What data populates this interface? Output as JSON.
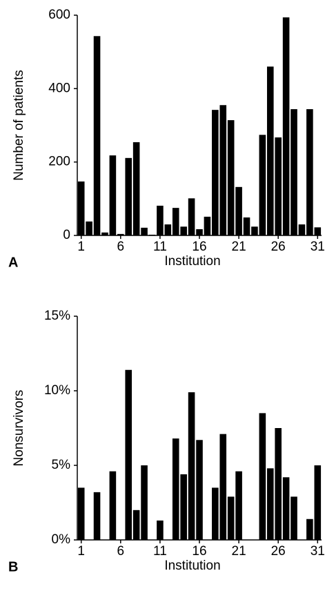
{
  "chart_data": [
    {
      "type": "bar",
      "panel_label": "A",
      "x_label": "Institution",
      "y_label": "Number of patients",
      "categories": [
        "1",
        null,
        null,
        null,
        null,
        "6",
        null,
        null,
        null,
        null,
        "11",
        null,
        null,
        null,
        null,
        "16",
        null,
        null,
        null,
        null,
        "21",
        null,
        null,
        null,
        null,
        "26",
        null,
        null,
        null,
        null,
        "31"
      ],
      "values": [
        147,
        38,
        543,
        8,
        218,
        4,
        211,
        254,
        21,
        2,
        81,
        30,
        75,
        24,
        101,
        17,
        51,
        342,
        355,
        314,
        132,
        49,
        24,
        274,
        460,
        267,
        594,
        344,
        30,
        344,
        22
      ],
      "color": "#000000",
      "ylim": [
        0,
        600
      ],
      "yticks": [
        0,
        200,
        400,
        600
      ]
    },
    {
      "type": "bar",
      "panel_label": "B",
      "x_label": "Institution",
      "y_label": "Nonsurvivors",
      "categories": [
        "1",
        null,
        null,
        null,
        null,
        "6",
        null,
        null,
        null,
        null,
        "11",
        null,
        null,
        null,
        null,
        "16",
        null,
        null,
        null,
        null,
        "21",
        null,
        null,
        null,
        null,
        "26",
        null,
        null,
        null,
        null,
        "31"
      ],
      "values": [
        3.5,
        0,
        3.2,
        0,
        4.6,
        0,
        11.4,
        2.0,
        5.0,
        0,
        1.3,
        0,
        6.8,
        4.4,
        9.9,
        6.7,
        0,
        3.5,
        7.1,
        2.9,
        4.6,
        0,
        0,
        8.5,
        4.8,
        7.5,
        4.2,
        2.9,
        0,
        1.4,
        5.0
      ],
      "color": "#000000",
      "ylim": [
        0,
        15
      ],
      "yticks": [
        {
          "value": 0,
          "label": "0%"
        },
        {
          "value": 5,
          "label": "5%"
        },
        {
          "value": 10,
          "label": "10%"
        },
        {
          "value": 15,
          "label": "15%"
        }
      ]
    }
  ]
}
